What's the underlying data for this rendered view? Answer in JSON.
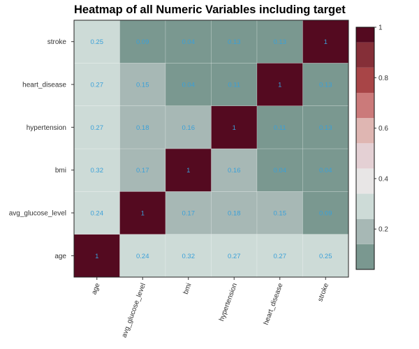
{
  "chart_data": {
    "type": "heatmap",
    "title": "Heatmap of all Numeric Variables including target",
    "xlabel": "",
    "ylabel": "",
    "x_categories": [
      "age",
      "avg_glucose_level",
      "bmi",
      "hypertension",
      "heart_disease",
      "stroke"
    ],
    "y_categories": [
      "age",
      "avg_glucose_level",
      "bmi",
      "hypertension",
      "heart_disease",
      "stroke"
    ],
    "values": [
      [
        1,
        0.24,
        0.32,
        0.27,
        0.27,
        0.25
      ],
      [
        0.24,
        1,
        0.17,
        0.18,
        0.15,
        0.09
      ],
      [
        0.32,
        0.17,
        1,
        0.16,
        0.04,
        0.04
      ],
      [
        0.27,
        0.18,
        0.16,
        1,
        0.11,
        0.13
      ],
      [
        0.27,
        0.15,
        0.04,
        0.11,
        1,
        0.13
      ],
      [
        0.25,
        0.09,
        0.04,
        0.13,
        0.13,
        1
      ]
    ],
    "colorbar": {
      "range": [
        0.04,
        1
      ],
      "ticks": [
        0.2,
        0.4,
        0.6,
        0.8,
        1
      ],
      "tick_labels": [
        "0.2",
        "0.4",
        "0.6",
        "0.8",
        "1"
      ],
      "bins": [
        {
          "from": 0.04,
          "to": 0.14,
          "color": "#7a9890"
        },
        {
          "from": 0.14,
          "to": 0.24,
          "color": "#a7b8b5"
        },
        {
          "from": 0.24,
          "to": 0.34,
          "color": "#cddbd7"
        },
        {
          "from": 0.34,
          "to": 0.44,
          "color": "#e8e6e6"
        },
        {
          "from": 0.44,
          "to": 0.54,
          "color": "#e4d0d4"
        },
        {
          "from": 0.54,
          "to": 0.64,
          "color": "#dfb6b2"
        },
        {
          "from": 0.64,
          "to": 0.74,
          "color": "#cb7a7a"
        },
        {
          "from": 0.74,
          "to": 0.84,
          "color": "#a84547"
        },
        {
          "from": 0.84,
          "to": 0.94,
          "color": "#852f38"
        },
        {
          "from": 0.94,
          "to": 1.0,
          "color": "#540a20"
        }
      ]
    },
    "value_label_color": "#3aa0d8",
    "grid": false,
    "legend_position": "right"
  }
}
